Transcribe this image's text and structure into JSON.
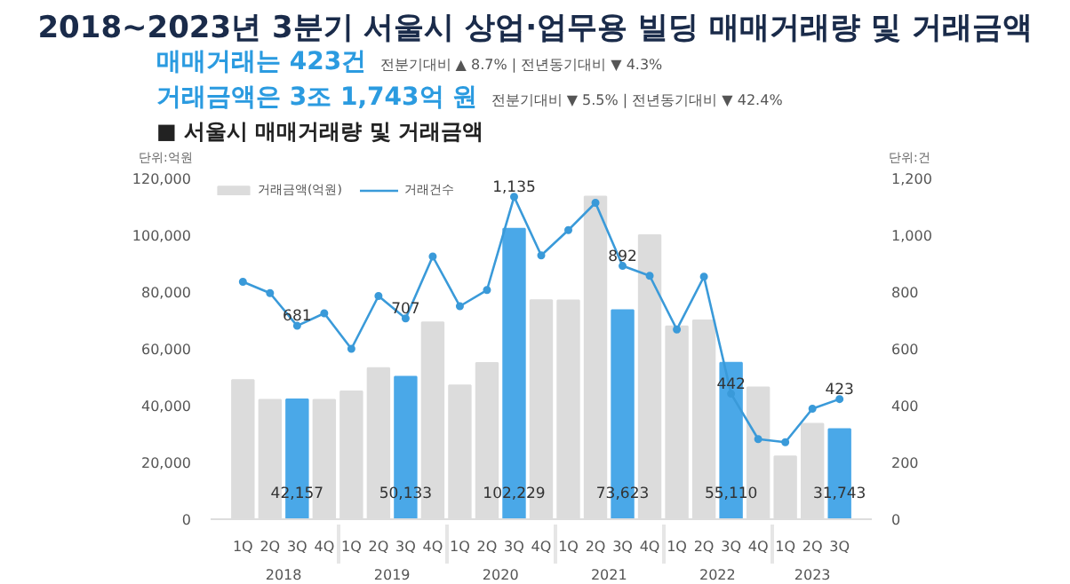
{
  "chart_data": {
    "type": "bar",
    "title": "2018~2023년 3분기 서울시 상업·업무용 빌딩 매매거래량 및 거래금액",
    "subtitle": "■ 서울시 매매거래량 및 거래금액",
    "annotations": [
      "매매거래는 423건",
      "전분기대비 ▲ 8.7% | 전년동기대비 ▼ 4.3%",
      "거래금액은 3조 1,743억 원",
      "전분기대비 ▼ 5.5% | 전년동기대비 ▼ 42.4%",
      "2018",
      "2019",
      "2020",
      "2021",
      "2022",
      "2023"
    ],
    "ylabel": "단위:억원",
    "y2label": "단위:건",
    "categories": [
      "1Q",
      "2Q",
      "3Q",
      "4Q",
      "1Q",
      "2Q",
      "3Q",
      "4Q",
      "1Q",
      "2Q",
      "3Q",
      "4Q",
      "1Q",
      "2Q",
      "3Q",
      "4Q",
      "1Q",
      "2Q",
      "3Q",
      "4Q",
      "1Q",
      "2Q",
      "3Q"
    ],
    "series": [
      {
        "name": "거래금액(억원)",
        "colors": [
          "#dcdcdc",
          "#dcdcdc",
          "#4aa8e8",
          "#dcdcdc",
          "#dcdcdc",
          "#dcdcdc",
          "#4aa8e8",
          "#dcdcdc",
          "#dcdcdc",
          "#dcdcdc",
          "#4aa8e8",
          "#dcdcdc",
          "#dcdcdc",
          "#dcdcdc",
          "#4aa8e8",
          "#dcdcdc",
          "#dcdcdc",
          "#dcdcdc",
          "#4aa8e8",
          "#dcdcdc",
          "#dcdcdc",
          "#dcdcdc",
          "#4aa8e8"
        ],
        "values": [
          49000,
          42000,
          42157,
          42000,
          45000,
          53200,
          50133,
          69300,
          47100,
          55000,
          102229,
          77100,
          77000,
          113600,
          73623,
          100000,
          67900,
          70000,
          55110,
          46400,
          22100,
          33600,
          31743
        ],
        "value_labels": [
          null,
          null,
          "42,157",
          null,
          null,
          null,
          "50,133",
          null,
          null,
          null,
          "102,229",
          null,
          null,
          null,
          "73,623",
          null,
          null,
          null,
          "55,110",
          null,
          null,
          null,
          "31,743"
        ]
      },
      {
        "name": "거래건수",
        "type": "line",
        "axis": "y2",
        "color": "#3a9ad9",
        "marker": "circle",
        "values": [
          836,
          796,
          681,
          725,
          600,
          786,
          707,
          925,
          750,
          807,
          1135,
          929,
          1018,
          1114,
          892,
          857,
          668,
          854,
          442,
          282,
          271,
          389,
          423
        ],
        "value_labels": [
          null,
          null,
          "681",
          null,
          null,
          null,
          "707",
          null,
          null,
          null,
          "1,135",
          null,
          null,
          null,
          "892",
          null,
          null,
          null,
          "442",
          null,
          null,
          null,
          "423"
        ]
      }
    ],
    "ylim": [
      0,
      120000
    ],
    "yticks": [
      {
        "value": 0,
        "label": "0"
      },
      {
        "value": 20000,
        "label": "20,000"
      },
      {
        "value": 40000,
        "label": "40,000"
      },
      {
        "value": 60000,
        "label": "60,000"
      },
      {
        "value": 80000,
        "label": "80,000"
      },
      {
        "value": 100000,
        "label": "100,000"
      },
      {
        "value": 120000,
        "label": "120,000"
      }
    ],
    "y2lim": [
      0,
      1200
    ],
    "y2ticks": [
      {
        "value": 0,
        "label": "0"
      },
      {
        "value": 200,
        "label": "200"
      },
      {
        "value": 400,
        "label": "400"
      },
      {
        "value": 600,
        "label": "600"
      },
      {
        "value": 800,
        "label": "800"
      },
      {
        "value": 1000,
        "label": "1,000"
      },
      {
        "value": 1200,
        "label": "1,200"
      }
    ],
    "legend": "top left"
  }
}
